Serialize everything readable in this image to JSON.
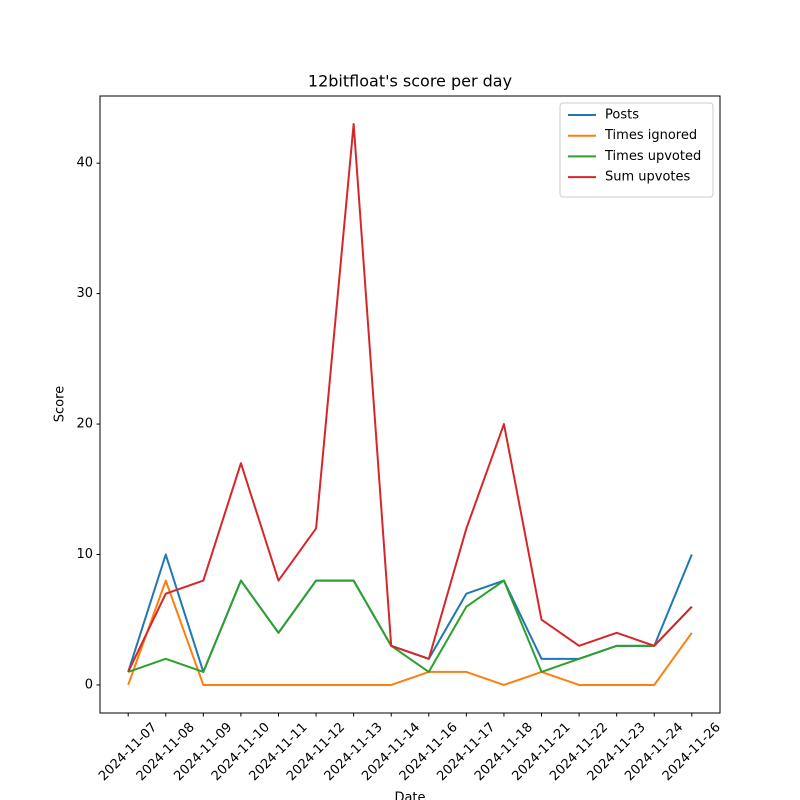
{
  "chart_data": {
    "type": "line",
    "title": "12bitfloat's score per day",
    "x_label": "Date",
    "y_label": "Score",
    "categories": [
      "2024-11-07",
      "2024-11-08",
      "2024-11-09",
      "2024-11-10",
      "2024-11-11",
      "2024-11-12",
      "2024-11-13",
      "2024-11-14",
      "2024-11-16",
      "2024-11-17",
      "2024-11-18",
      "2024-11-21",
      "2024-11-22",
      "2024-11-23",
      "2024-11-24",
      "2024-11-26"
    ],
    "series": [
      {
        "name": "Posts",
        "color": "#1f77b4",
        "values": [
          1,
          10,
          1,
          8,
          4,
          8,
          8,
          3,
          2,
          7,
          8,
          2,
          2,
          3,
          3,
          10
        ]
      },
      {
        "name": "Times ignored",
        "color": "#ff7f0e",
        "values": [
          0,
          8,
          0,
          0,
          0,
          0,
          0,
          0,
          1,
          1,
          0,
          1,
          0,
          0,
          0,
          4
        ]
      },
      {
        "name": "Times upvoted",
        "color": "#2ca02c",
        "values": [
          1,
          2,
          1,
          8,
          4,
          8,
          8,
          3,
          1,
          6,
          8,
          1,
          2,
          3,
          3,
          6
        ]
      },
      {
        "name": "Sum upvotes",
        "color": "#d62728",
        "values": [
          1,
          7,
          8,
          17,
          8,
          12,
          43,
          3,
          2,
          12,
          20,
          5,
          3,
          4,
          3,
          6
        ]
      }
    ],
    "ylim": [
      -2.15,
      45.15
    ],
    "yticks": [
      0,
      10,
      20,
      30,
      40
    ],
    "grid": false,
    "legend": "upper right"
  }
}
